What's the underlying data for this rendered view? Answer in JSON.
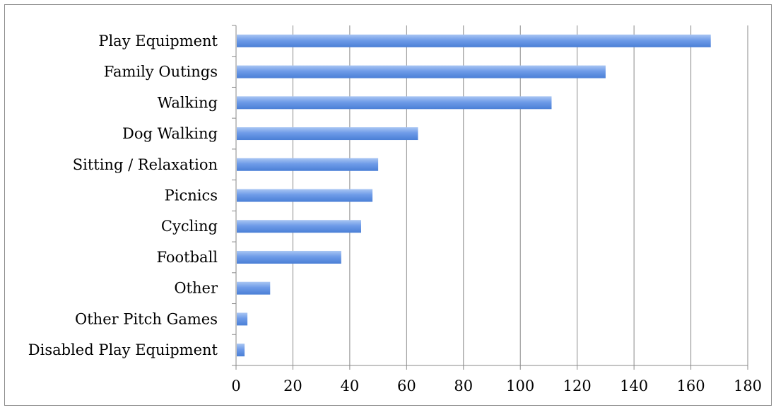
{
  "chart_data": {
    "type": "bar",
    "orientation": "horizontal",
    "title": "",
    "xlabel": "",
    "ylabel": "",
    "categories": [
      "Play Equipment",
      "Family Outings",
      "Walking",
      "Dog Walking",
      "Sitting / Relaxation",
      "Picnics",
      "Cycling",
      "Football",
      "Other",
      "Other Pitch Games",
      "Disabled Play Equipment"
    ],
    "values": [
      167,
      130,
      111,
      64,
      50,
      48,
      44,
      37,
      12,
      4,
      3
    ],
    "xlim": [
      0,
      180
    ],
    "x_ticks": [
      0,
      20,
      40,
      60,
      80,
      100,
      120,
      140,
      160,
      180
    ],
    "grid": "vertical",
    "legend": "none",
    "bar_color": "#5b8ee0"
  }
}
